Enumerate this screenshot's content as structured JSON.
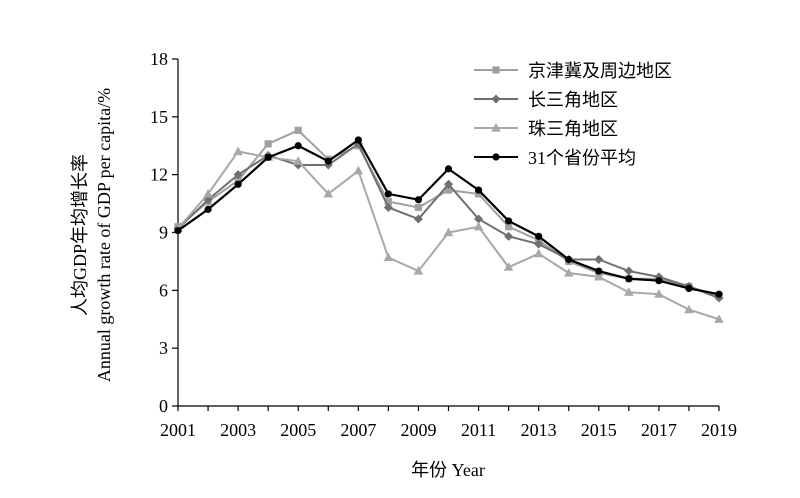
{
  "chart_data": {
    "type": "line",
    "xlabel": "年份 Year",
    "ylabel_line1": "人均GDP年均增长率",
    "ylabel_line2": "Annual growth rate of GDP per capita/%",
    "x": [
      2001,
      2002,
      2003,
      2004,
      2005,
      2006,
      2007,
      2008,
      2009,
      2010,
      2011,
      2012,
      2013,
      2014,
      2015,
      2016,
      2017,
      2018,
      2019
    ],
    "x_tick_labels": [
      "2001",
      "2003",
      "2005",
      "2007",
      "2009",
      "2011",
      "2013",
      "2015",
      "2017",
      "2019"
    ],
    "x_tick_values": [
      2001,
      2003,
      2005,
      2007,
      2009,
      2011,
      2013,
      2015,
      2017,
      2019
    ],
    "xlim": [
      2001,
      2019
    ],
    "ylim": [
      0,
      18
    ],
    "y_ticks": [
      0,
      3,
      6,
      9,
      12,
      15,
      18
    ],
    "grid": false,
    "legend_position": "top-right",
    "series": [
      {
        "name": "京津冀及周边地区",
        "marker": "square",
        "color": "#a0a0a0",
        "values": [
          9.3,
          10.6,
          11.7,
          13.6,
          14.3,
          12.8,
          13.5,
          10.6,
          10.3,
          11.2,
          11.0,
          9.3,
          8.6,
          7.5,
          6.9,
          6.6,
          6.6,
          6.2,
          5.7
        ]
      },
      {
        "name": "长三角地区",
        "marker": "diamond",
        "color": "#707070",
        "values": [
          9.2,
          10.7,
          12.0,
          13.0,
          12.5,
          12.5,
          13.6,
          10.3,
          9.7,
          11.5,
          9.7,
          8.8,
          8.4,
          7.6,
          7.6,
          7.0,
          6.7,
          6.2,
          5.6
        ]
      },
      {
        "name": "珠三角地区",
        "marker": "triangle",
        "color": "#a8a8a8",
        "values": [
          9.2,
          11.0,
          13.2,
          12.9,
          12.7,
          11.0,
          12.2,
          7.7,
          7.0,
          9.0,
          9.3,
          7.2,
          7.9,
          6.9,
          6.7,
          5.9,
          5.8,
          5.0,
          4.5
        ]
      },
      {
        "name": "31个省份平均",
        "marker": "circle",
        "color": "#000000",
        "values": [
          9.1,
          10.2,
          11.5,
          12.9,
          13.5,
          12.7,
          13.8,
          11.0,
          10.7,
          12.3,
          11.2,
          9.6,
          8.8,
          7.6,
          7.0,
          6.6,
          6.5,
          6.1,
          5.8
        ]
      }
    ]
  }
}
